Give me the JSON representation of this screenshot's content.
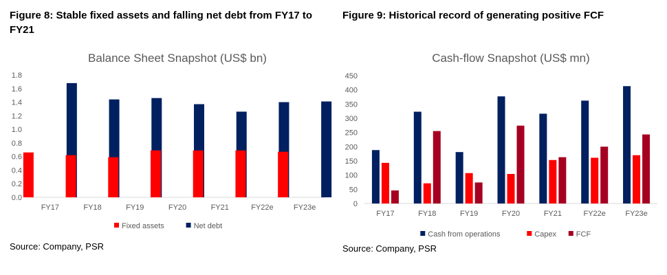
{
  "figures": [
    {
      "caption": "Figure 8: Stable fixed assets and falling net debt from FY17 to FY21",
      "source": "Source: Company, PSR"
    },
    {
      "caption": "Figure 9: Historical record of generating positive FCF",
      "source": "Source: Company, PSR"
    }
  ],
  "chart_data": [
    {
      "type": "bar",
      "title": "Balance Sheet Snapshot (US$ bn)",
      "xlabel": "",
      "ylabel": "",
      "categories": [
        "FY17",
        "FY18",
        "FY19",
        "FY20",
        "FY21",
        "FY22e",
        "FY23e"
      ],
      "series": [
        {
          "name": "Fixed assets",
          "color": "#ff0000",
          "values": [
            0.66,
            0.62,
            0.59,
            0.69,
            0.69,
            0.69,
            0.67
          ]
        },
        {
          "name": "Net debt",
          "color": "#002060",
          "values": [
            1.68,
            1.44,
            1.46,
            1.37,
            1.26,
            1.4,
            1.41
          ]
        }
      ],
      "ylim": [
        0,
        1.8
      ],
      "yticks": [
        "0.0",
        "0.2",
        "0.4",
        "0.6",
        "0.8",
        "1.0",
        "1.2",
        "1.4",
        "1.6",
        "1.8"
      ],
      "grid": false,
      "legend": "bottom"
    },
    {
      "type": "bar",
      "title": "Cash-flow Snapshot (US$ mn)",
      "xlabel": "",
      "ylabel": "",
      "categories": [
        "FY17",
        "FY18",
        "FY19",
        "FY20",
        "FY21",
        "FY22e",
        "FY23e"
      ],
      "series": [
        {
          "name": "Cash from operations",
          "color": "#002060",
          "values": [
            188,
            323,
            181,
            377,
            316,
            362,
            413
          ]
        },
        {
          "name": "Capex",
          "color": "#ff0000",
          "values": [
            143,
            71,
            107,
            104,
            153,
            161,
            170
          ]
        },
        {
          "name": "FCF",
          "color": "#a50021",
          "values": [
            46,
            255,
            74,
            274,
            163,
            200,
            243
          ]
        }
      ],
      "ylim": [
        0,
        450
      ],
      "yticks": [
        "0",
        "50",
        "100",
        "150",
        "200",
        "250",
        "300",
        "350",
        "400",
        "450"
      ],
      "grid": false,
      "legend": "bottom"
    }
  ]
}
